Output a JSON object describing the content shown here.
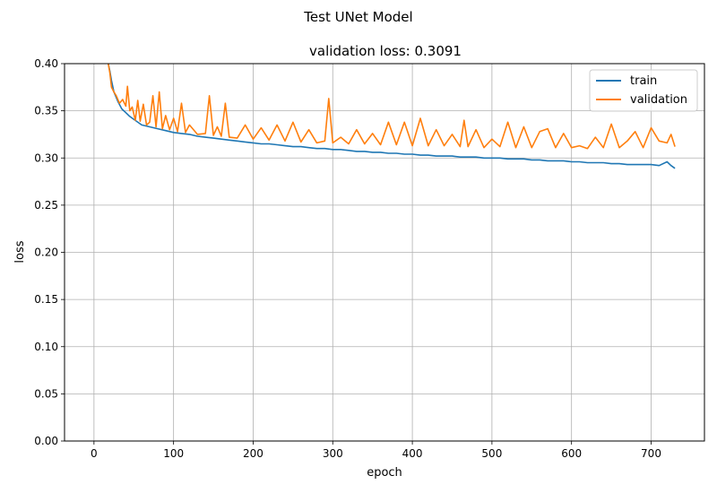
{
  "chart_data": {
    "type": "line",
    "suptitle": "Test UNet Model",
    "title": "validation loss: 0.3091",
    "xlabel": "epoch",
    "ylabel": "loss",
    "xlim": [
      -37,
      767
    ],
    "ylim": [
      0.0,
      0.4
    ],
    "xticks": [
      0,
      100,
      200,
      300,
      400,
      500,
      600,
      700
    ],
    "yticks": [
      0.0,
      0.05,
      0.1,
      0.15,
      0.2,
      0.25,
      0.3,
      0.35,
      0.4
    ],
    "grid": true,
    "legend_position": "top-right",
    "series": [
      {
        "name": "train",
        "color": "#1f77b4",
        "x": [
          18,
          20,
          22,
          25,
          30,
          35,
          40,
          45,
          50,
          60,
          70,
          80,
          90,
          100,
          110,
          120,
          130,
          140,
          150,
          160,
          170,
          180,
          190,
          200,
          210,
          220,
          230,
          240,
          250,
          260,
          270,
          280,
          290,
          300,
          310,
          320,
          330,
          340,
          350,
          360,
          370,
          380,
          390,
          400,
          410,
          420,
          430,
          440,
          450,
          460,
          470,
          480,
          490,
          500,
          510,
          520,
          530,
          540,
          550,
          560,
          570,
          580,
          590,
          600,
          610,
          620,
          630,
          640,
          650,
          660,
          670,
          680,
          690,
          700,
          710,
          720,
          725,
          730
        ],
        "values": [
          0.4,
          0.392,
          0.382,
          0.37,
          0.36,
          0.352,
          0.348,
          0.344,
          0.341,
          0.335,
          0.333,
          0.331,
          0.329,
          0.327,
          0.326,
          0.325,
          0.323,
          0.322,
          0.321,
          0.32,
          0.319,
          0.318,
          0.317,
          0.316,
          0.315,
          0.315,
          0.314,
          0.313,
          0.312,
          0.312,
          0.311,
          0.31,
          0.31,
          0.309,
          0.309,
          0.308,
          0.307,
          0.307,
          0.306,
          0.306,
          0.305,
          0.305,
          0.304,
          0.304,
          0.303,
          0.303,
          0.302,
          0.302,
          0.302,
          0.301,
          0.301,
          0.301,
          0.3,
          0.3,
          0.3,
          0.299,
          0.299,
          0.299,
          0.298,
          0.298,
          0.297,
          0.297,
          0.297,
          0.296,
          0.296,
          0.295,
          0.295,
          0.295,
          0.294,
          0.294,
          0.293,
          0.293,
          0.293,
          0.293,
          0.292,
          0.296,
          0.292,
          0.289
        ]
      },
      {
        "name": "validation",
        "color": "#ff7f0e",
        "x": [
          18,
          20,
          22,
          25,
          28,
          32,
          36,
          40,
          42,
          45,
          48,
          52,
          55,
          58,
          62,
          66,
          70,
          74,
          78,
          82,
          86,
          90,
          95,
          100,
          105,
          110,
          115,
          120,
          130,
          140,
          145,
          150,
          155,
          160,
          165,
          170,
          180,
          190,
          200,
          210,
          220,
          230,
          240,
          250,
          260,
          270,
          280,
          290,
          295,
          300,
          310,
          320,
          330,
          340,
          350,
          360,
          370,
          380,
          390,
          400,
          410,
          420,
          430,
          440,
          450,
          460,
          465,
          470,
          480,
          490,
          500,
          510,
          520,
          530,
          540,
          550,
          560,
          570,
          580,
          590,
          600,
          610,
          620,
          630,
          640,
          650,
          660,
          670,
          680,
          690,
          700,
          710,
          720,
          725,
          730
        ],
        "values": [
          0.4,
          0.39,
          0.375,
          0.37,
          0.366,
          0.358,
          0.362,
          0.355,
          0.376,
          0.35,
          0.354,
          0.34,
          0.361,
          0.339,
          0.357,
          0.335,
          0.338,
          0.366,
          0.333,
          0.37,
          0.331,
          0.345,
          0.33,
          0.342,
          0.328,
          0.358,
          0.327,
          0.335,
          0.325,
          0.326,
          0.366,
          0.324,
          0.333,
          0.323,
          0.358,
          0.322,
          0.321,
          0.335,
          0.32,
          0.332,
          0.319,
          0.335,
          0.318,
          0.338,
          0.317,
          0.33,
          0.316,
          0.318,
          0.363,
          0.316,
          0.322,
          0.315,
          0.33,
          0.315,
          0.326,
          0.314,
          0.338,
          0.314,
          0.338,
          0.313,
          0.342,
          0.313,
          0.33,
          0.313,
          0.325,
          0.312,
          0.34,
          0.312,
          0.33,
          0.311,
          0.32,
          0.312,
          0.338,
          0.311,
          0.333,
          0.311,
          0.328,
          0.331,
          0.311,
          0.326,
          0.311,
          0.313,
          0.31,
          0.322,
          0.311,
          0.336,
          0.311,
          0.318,
          0.328,
          0.311,
          0.332,
          0.318,
          0.316,
          0.325,
          0.312
        ]
      }
    ]
  }
}
